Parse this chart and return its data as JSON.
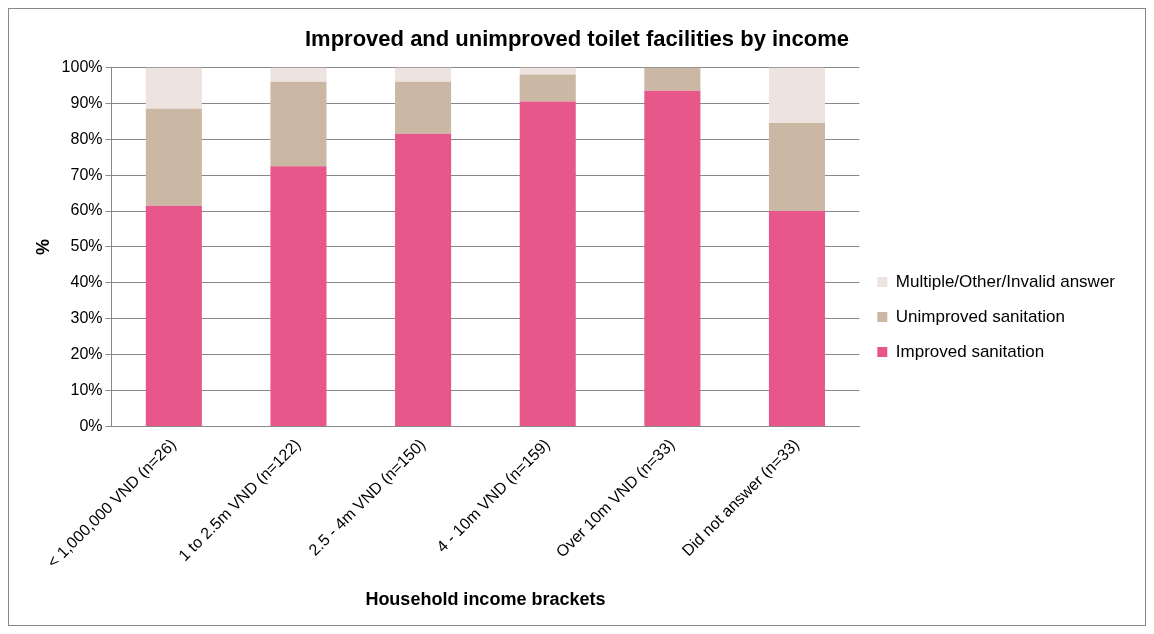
{
  "chart_data": {
    "type": "bar",
    "title": "Improved and unimproved toilet facilities by income",
    "xlabel": "Household income brackets",
    "ylabel": "%",
    "categories": [
      "< 1,000,000 VND (n=26)",
      "1 to 2.5m VND (n=122)",
      "2.5 - 4m VND (n=150)",
      "4 - 10m VND (n=159)",
      "Over 10m VND (n=33)",
      "Did not answer (n=33)"
    ],
    "stacked": true,
    "grid": "y",
    "legend": "right",
    "ylim": [
      0,
      100
    ],
    "yticks": [
      {
        "value": 0,
        "label": "0%"
      },
      {
        "value": 10,
        "label": "10%"
      },
      {
        "value": 20,
        "label": "20%"
      },
      {
        "value": 30,
        "label": "30%"
      },
      {
        "value": 40,
        "label": "40%"
      },
      {
        "value": 50,
        "label": "50%"
      },
      {
        "value": 60,
        "label": "60%"
      },
      {
        "value": 70,
        "label": "70%"
      },
      {
        "value": 80,
        "label": "80%"
      },
      {
        "value": 90,
        "label": "90%"
      },
      {
        "value": 100,
        "label": "100%"
      }
    ],
    "series": [
      {
        "name": "Improved sanitation",
        "color": "#e8578a",
        "values": [
          61.5,
          72.5,
          81.5,
          90.5,
          93.5,
          60
        ]
      },
      {
        "name": "Unimproved sanitation",
        "color": "#cbb8a4",
        "values": [
          27,
          23.5,
          14.5,
          7.5,
          6.5,
          24.5
        ]
      },
      {
        "name": "Multiple/Other/Invalid answer",
        "color": "#ede3df",
        "values": [
          11.5,
          4,
          4,
          2,
          0,
          15.5
        ]
      }
    ]
  }
}
